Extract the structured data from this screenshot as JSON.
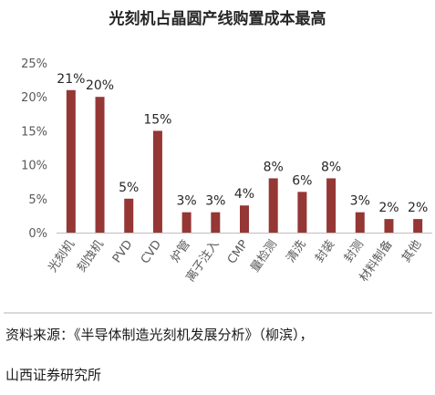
{
  "chart_data": {
    "type": "bar",
    "title": "光刻机占晶圆产线购置成本最高",
    "categories": [
      "光刻机",
      "刻蚀机",
      "PVD",
      "CVD",
      "炉管",
      "离子注入",
      "CMP",
      "量检测",
      "清洗",
      "封装",
      "封测",
      "材料制备",
      "其他"
    ],
    "values": [
      21,
      20,
      5,
      15,
      3,
      3,
      4,
      8,
      6,
      8,
      3,
      2,
      2
    ],
    "data_labels": [
      "21%",
      "20%",
      "5%",
      "15%",
      "3%",
      "3%",
      "4%",
      "8%",
      "6%",
      "8%",
      "3%",
      "2%",
      "2%"
    ],
    "ylim": [
      0,
      25
    ],
    "yticks": [
      0,
      5,
      10,
      15,
      20,
      25
    ],
    "ytick_labels": [
      "0%",
      "5%",
      "10%",
      "15%",
      "20%",
      "25%"
    ],
    "xlabel": "",
    "ylabel": "",
    "grid": false,
    "bar_color": "#953735"
  },
  "source": {
    "line1": "资料来源：《半导体制造光刻机发展分析》（柳滨），",
    "line2": "山西证券研究所"
  }
}
